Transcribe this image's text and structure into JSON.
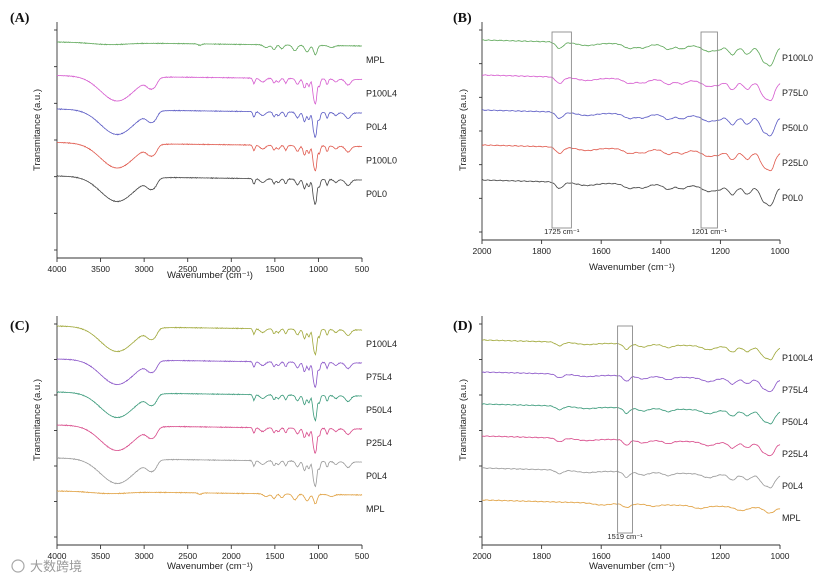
{
  "watermark": "大数跨境",
  "chart_data": [
    {
      "type": "line",
      "panel": "(A)",
      "xlabel": "Wavenumber (cm⁻¹)",
      "ylabel": "Transmitance (a.u.)",
      "xlim": [
        4000,
        500
      ],
      "xticks": [
        "4000",
        "3500",
        "3000",
        "2500",
        "2000",
        "1500",
        "1000",
        "500"
      ],
      "series": [
        {
          "name": "MPL",
          "color": "#5fa85a",
          "offset": 0,
          "profile": "mpl"
        },
        {
          "name": "P100L4",
          "color": "#d65ccf",
          "offset": 1,
          "profile": "full"
        },
        {
          "name": "P0L4",
          "color": "#5b5bc4",
          "offset": 2,
          "profile": "full"
        },
        {
          "name": "P100L0",
          "color": "#e05a4e",
          "offset": 3,
          "profile": "full"
        },
        {
          "name": "P0L0",
          "color": "#444444",
          "offset": 4,
          "profile": "full"
        }
      ]
    },
    {
      "type": "line",
      "panel": "(B)",
      "xlabel": "Wavenumber (cm⁻¹)",
      "ylabel": "Transmitance (a.u.)",
      "xlim": [
        2000,
        1000
      ],
      "xticks": [
        "2000",
        "1800",
        "1600",
        "1400",
        "1200",
        "1000"
      ],
      "series": [
        {
          "name": "P100L0",
          "color": "#5fa85a",
          "offset": 0,
          "profile": "fp"
        },
        {
          "name": "P75L0",
          "color": "#d65ccf",
          "offset": 1,
          "profile": "fp"
        },
        {
          "name": "P50L0",
          "color": "#5b5bc4",
          "offset": 2,
          "profile": "fp"
        },
        {
          "name": "P25L0",
          "color": "#e05a4e",
          "offset": 3,
          "profile": "fp"
        },
        {
          "name": "P0L0",
          "color": "#444444",
          "offset": 4,
          "profile": "fp"
        }
      ],
      "annotations": [
        {
          "label": "1725 cm⁻¹",
          "x_range": [
            1765,
            1700
          ]
        },
        {
          "label": "1201 cm⁻¹",
          "x_range": [
            1265,
            1210
          ]
        }
      ]
    },
    {
      "type": "line",
      "panel": "(C)",
      "xlabel": "Wavenumber (cm⁻¹)",
      "ylabel": "Transmitance (a.u.)",
      "xlim": [
        4000,
        500
      ],
      "xticks": [
        "4000",
        "3500",
        "3000",
        "2500",
        "2000",
        "1500",
        "1000",
        "500"
      ],
      "series": [
        {
          "name": "P100L4",
          "color": "#a0a83a",
          "offset": 0,
          "profile": "full"
        },
        {
          "name": "P75L4",
          "color": "#8a55c8",
          "offset": 1,
          "profile": "full"
        },
        {
          "name": "P50L4",
          "color": "#3a9a7a",
          "offset": 2,
          "profile": "full"
        },
        {
          "name": "P25L4",
          "color": "#d84a8a",
          "offset": 3,
          "profile": "full"
        },
        {
          "name": "P0L4",
          "color": "#9a9a9a",
          "offset": 4,
          "profile": "full"
        },
        {
          "name": "MPL",
          "color": "#e0a040",
          "offset": 5,
          "profile": "mpl"
        }
      ]
    },
    {
      "type": "line",
      "panel": "(D)",
      "xlabel": "Wavenumber (cm⁻¹)",
      "ylabel": "Transmitance (a.u.)",
      "xlim": [
        2000,
        1000
      ],
      "xticks": [
        "2000",
        "1800",
        "1600",
        "1400",
        "1200",
        "1000"
      ],
      "series": [
        {
          "name": "P100L4",
          "color": "#a0a83a",
          "offset": 0,
          "profile": "fpl"
        },
        {
          "name": "P75L4",
          "color": "#8a55c8",
          "offset": 1,
          "profile": "fpl"
        },
        {
          "name": "P50L4",
          "color": "#3a9a7a",
          "offset": 2,
          "profile": "fpl"
        },
        {
          "name": "P25L4",
          "color": "#d84a8a",
          "offset": 3,
          "profile": "fpl"
        },
        {
          "name": "P0L4",
          "color": "#9a9a9a",
          "offset": 4,
          "profile": "fpl"
        },
        {
          "name": "MPL",
          "color": "#e0a040",
          "offset": 5,
          "profile": "fpmpl"
        }
      ],
      "annotations": [
        {
          "label": "1519 cm⁻¹",
          "x_range": [
            1545,
            1495
          ]
        }
      ]
    }
  ]
}
